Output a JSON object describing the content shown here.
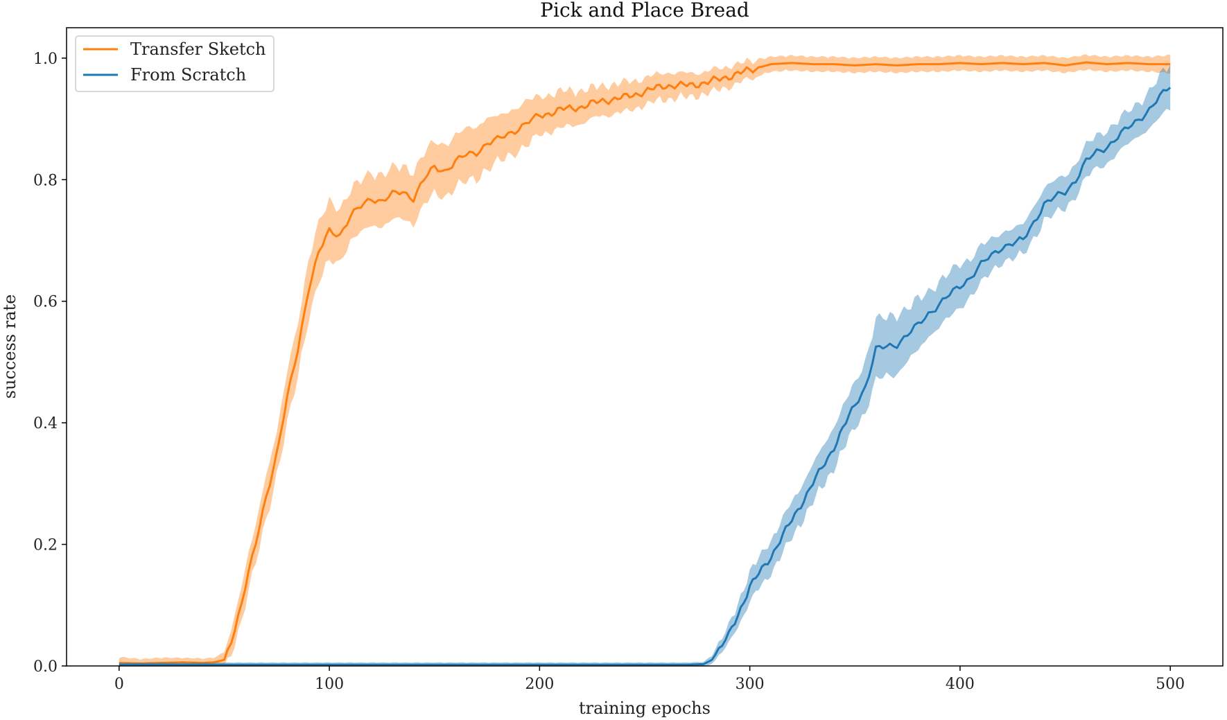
{
  "chart_data": {
    "type": "line",
    "title": "Pick and Place Bread",
    "xlabel": "training epochs",
    "ylabel": "success rate",
    "xlim": [
      -25,
      525
    ],
    "ylim": [
      0,
      1.05
    ],
    "xticks": [
      0,
      100,
      200,
      300,
      400,
      500
    ],
    "yticks": [
      0.0,
      0.2,
      0.4,
      0.6,
      0.8,
      1.0
    ],
    "xtick_labels": [
      "0",
      "100",
      "200",
      "300",
      "400",
      "500"
    ],
    "ytick_labels": [
      "0.0",
      "0.2",
      "0.4",
      "0.6",
      "0.8",
      "1.0"
    ],
    "grid": false,
    "legend_position": "top-left",
    "series": [
      {
        "name": "Transfer Sketch",
        "color": "#ff7f0e",
        "x": [
          0,
          10,
          20,
          30,
          40,
          45,
          50,
          55,
          60,
          65,
          70,
          75,
          80,
          85,
          90,
          95,
          100,
          105,
          110,
          115,
          120,
          125,
          130,
          135,
          140,
          145,
          150,
          155,
          160,
          165,
          170,
          175,
          180,
          185,
          190,
          195,
          200,
          210,
          220,
          230,
          240,
          250,
          260,
          270,
          280,
          290,
          300,
          310,
          320,
          330,
          340,
          350,
          360,
          370,
          380,
          390,
          400,
          410,
          420,
          430,
          440,
          450,
          460,
          470,
          480,
          490,
          500
        ],
        "y": [
          0.005,
          0.004,
          0.005,
          0.006,
          0.005,
          0.006,
          0.01,
          0.06,
          0.13,
          0.2,
          0.28,
          0.35,
          0.44,
          0.52,
          0.62,
          0.68,
          0.715,
          0.71,
          0.74,
          0.755,
          0.77,
          0.765,
          0.775,
          0.78,
          0.77,
          0.8,
          0.82,
          0.815,
          0.83,
          0.84,
          0.845,
          0.86,
          0.865,
          0.875,
          0.885,
          0.895,
          0.905,
          0.915,
          0.92,
          0.93,
          0.935,
          0.945,
          0.955,
          0.955,
          0.96,
          0.97,
          0.98,
          0.99,
          0.992,
          0.99,
          0.99,
          0.988,
          0.99,
          0.988,
          0.99,
          0.99,
          0.992,
          0.99,
          0.992,
          0.99,
          0.992,
          0.988,
          0.993,
          0.99,
          0.992,
          0.99,
          0.99
        ],
        "band": [
          0.008,
          0.006,
          0.007,
          0.006,
          0.006,
          0.006,
          0.01,
          0.02,
          0.025,
          0.025,
          0.03,
          0.03,
          0.035,
          0.035,
          0.04,
          0.04,
          0.04,
          0.035,
          0.035,
          0.035,
          0.035,
          0.035,
          0.035,
          0.035,
          0.035,
          0.035,
          0.035,
          0.035,
          0.035,
          0.035,
          0.035,
          0.035,
          0.03,
          0.03,
          0.03,
          0.03,
          0.025,
          0.025,
          0.022,
          0.02,
          0.02,
          0.018,
          0.018,
          0.016,
          0.015,
          0.014,
          0.012,
          0.01,
          0.01,
          0.01,
          0.01,
          0.01,
          0.01,
          0.01,
          0.01,
          0.01,
          0.01,
          0.01,
          0.01,
          0.01,
          0.01,
          0.01,
          0.01,
          0.01,
          0.01,
          0.01,
          0.012
        ]
      },
      {
        "name": "From Scratch",
        "color": "#1f77b4",
        "x": [
          0,
          50,
          100,
          150,
          200,
          250,
          270,
          278,
          282,
          290,
          300,
          310,
          320,
          330,
          340,
          350,
          355,
          360,
          365,
          370,
          375,
          380,
          385,
          390,
          395,
          400,
          405,
          410,
          415,
          420,
          425,
          430,
          435,
          440,
          445,
          450,
          455,
          460,
          465,
          470,
          475,
          480,
          485,
          490,
          495,
          500
        ],
        "y": [
          0.002,
          0.002,
          0.002,
          0.002,
          0.002,
          0.002,
          0.002,
          0.003,
          0.01,
          0.05,
          0.13,
          0.18,
          0.24,
          0.3,
          0.36,
          0.43,
          0.46,
          0.52,
          0.525,
          0.53,
          0.545,
          0.56,
          0.58,
          0.595,
          0.61,
          0.625,
          0.64,
          0.66,
          0.675,
          0.69,
          0.695,
          0.7,
          0.73,
          0.76,
          0.77,
          0.78,
          0.8,
          0.83,
          0.845,
          0.855,
          0.87,
          0.885,
          0.9,
          0.915,
          0.935,
          0.955
        ],
        "band": [
          0.003,
          0.003,
          0.003,
          0.003,
          0.003,
          0.003,
          0.003,
          0.003,
          0.006,
          0.012,
          0.02,
          0.022,
          0.024,
          0.025,
          0.028,
          0.03,
          0.035,
          0.04,
          0.04,
          0.04,
          0.035,
          0.035,
          0.03,
          0.03,
          0.03,
          0.03,
          0.025,
          0.025,
          0.022,
          0.02,
          0.02,
          0.02,
          0.022,
          0.022,
          0.022,
          0.022,
          0.022,
          0.022,
          0.022,
          0.022,
          0.022,
          0.022,
          0.022,
          0.025,
          0.028,
          0.03
        ]
      }
    ]
  }
}
